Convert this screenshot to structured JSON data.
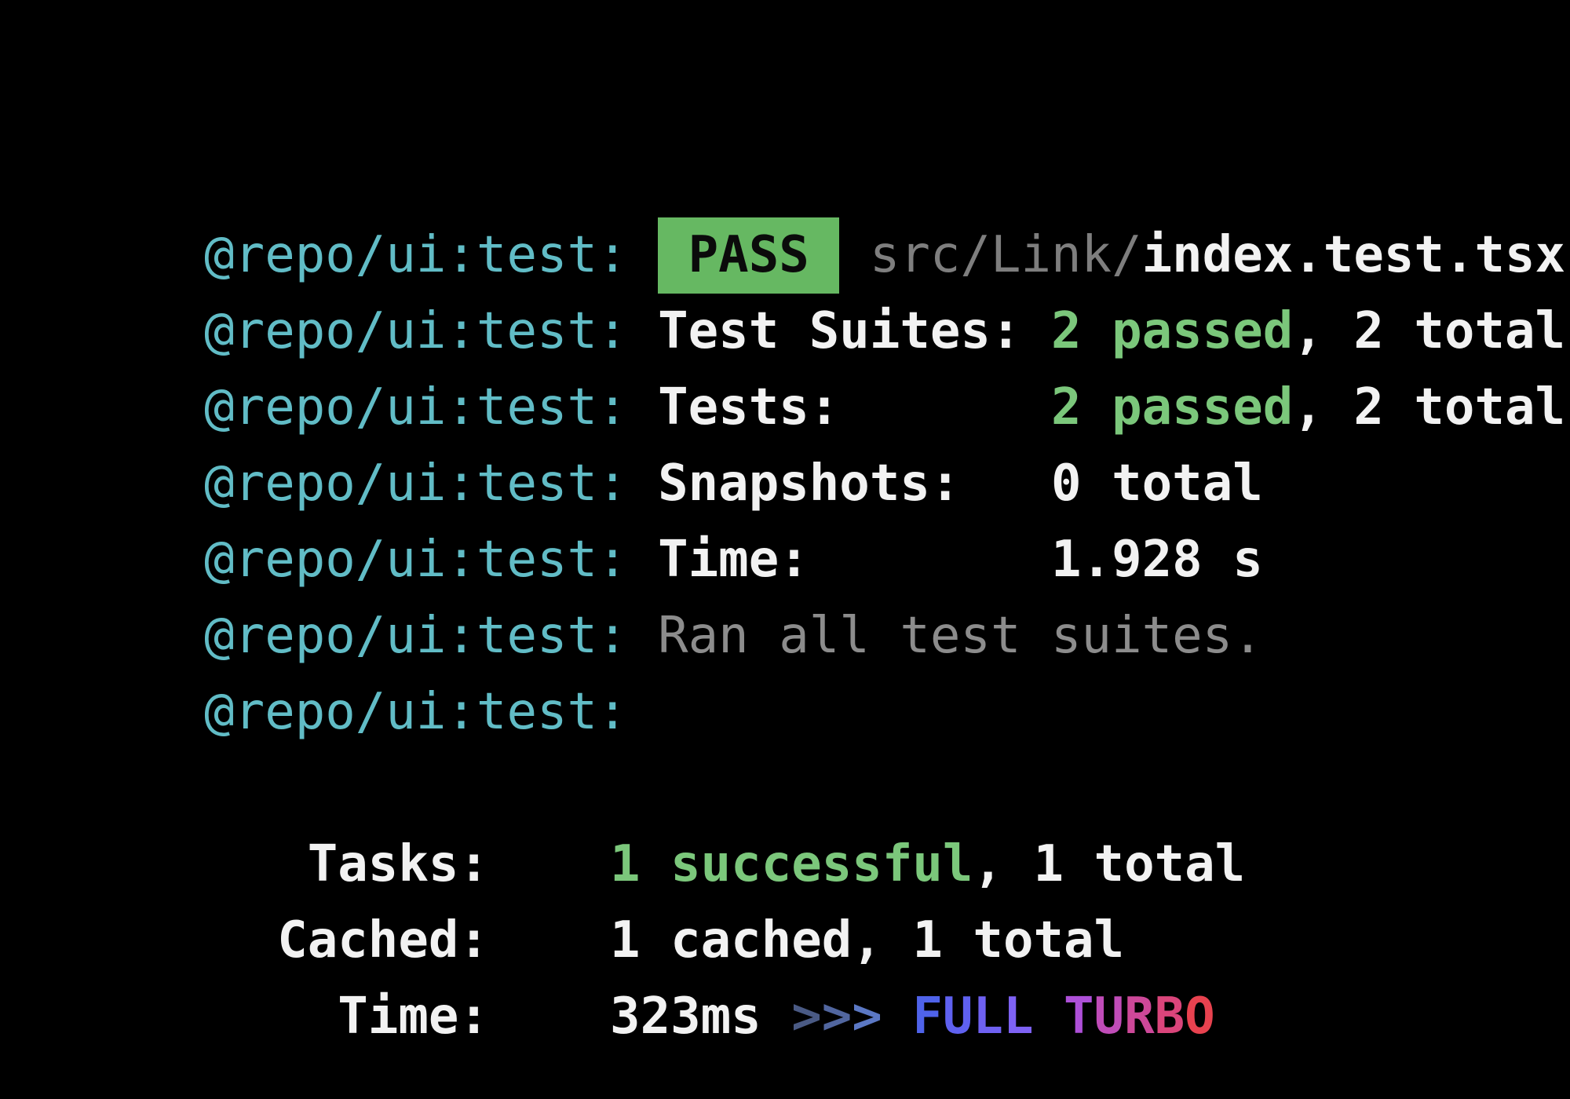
{
  "colors": {
    "background": "#000000",
    "cyan": "#61bcc6",
    "white": "#f2f2f2",
    "gray": "#7e7e7e",
    "gray_light": "#8c8c8c",
    "green": "#7bc77b",
    "badge_bg": "#66b862",
    "badge_text": "#0b0b0b",
    "arrow_colors": [
      "#4a5a84",
      "#51669f",
      "#5b78c4"
    ],
    "full_colors": [
      "#4f63ea",
      "#5f61f0",
      "#6f61f2",
      "#7e62f4"
    ],
    "turbo_colors": [
      "#ae50d8",
      "#c04cb8",
      "#cd4899",
      "#da457b",
      "#e8424f"
    ]
  },
  "jest": {
    "prefix": "@repo/ui:test: ",
    "prefix_bare": "@repo/ui:test:",
    "pass": {
      "badge": " PASS ",
      "dir": " src/Link/",
      "file": "index.test.tsx"
    },
    "rows": [
      {
        "label": "Test Suites: ",
        "passed": "2 passed",
        "rest": ", 2 total"
      },
      {
        "label": "Tests:       ",
        "passed": "2 passed",
        "rest": ", 2 total"
      },
      {
        "label": "Snapshots:   ",
        "rest": "0 total"
      },
      {
        "label": "Time:        ",
        "rest": "1.928 s"
      }
    ],
    "ran": "Ran all test suites."
  },
  "summary": {
    "tasks_label": " Tasks:    ",
    "tasks_value_green": "1 successful",
    "tasks_value_rest": ", 1 total",
    "cached_label": "Cached:    ",
    "cached_value": "1 cached, 1 total",
    "time_label": "  Time:    ",
    "time_value": "323ms ",
    "arrows_text": ">>>",
    "sep": " ",
    "full_label": "FULL",
    "turbo_label": "TURBO"
  }
}
